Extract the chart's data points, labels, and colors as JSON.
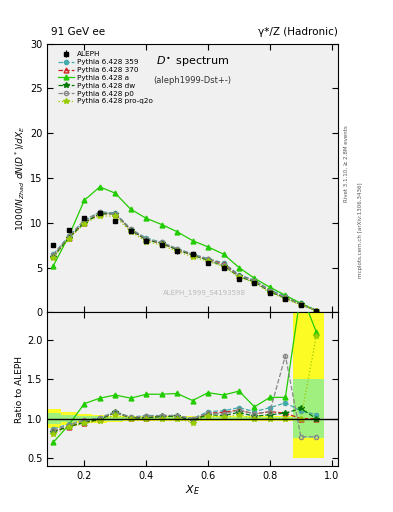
{
  "title_left": "91 GeV ee",
  "title_right": "γ*/Z (Hadronic)",
  "plot_title": "D* spectrum",
  "plot_subtitle": "(aleph1999-Dst+-)",
  "watermark": "ALEPH_1999_S4193598",
  "right_label1": "Rivet 3.1.10, ≥ 2.8M events",
  "right_label2": "mcplots.cern.ch [arXiv:1306.3436]",
  "ylim_main": [
    0,
    30
  ],
  "ylim_ratio": [
    0.4,
    2.35
  ],
  "xlim": [
    0.08,
    1.02
  ],
  "x_data": [
    0.1,
    0.15,
    0.2,
    0.25,
    0.3,
    0.35,
    0.4,
    0.45,
    0.5,
    0.55,
    0.6,
    0.65,
    0.7,
    0.75,
    0.8,
    0.85,
    0.9,
    0.95
  ],
  "aleph_y": [
    7.5,
    9.2,
    10.5,
    11.1,
    10.2,
    9.1,
    8.0,
    7.5,
    6.8,
    6.5,
    5.5,
    5.0,
    3.7,
    3.3,
    2.2,
    1.5,
    0.8,
    0.2
  ],
  "aleph_yerr": [
    0.25,
    0.25,
    0.25,
    0.25,
    0.25,
    0.25,
    0.25,
    0.25,
    0.25,
    0.25,
    0.25,
    0.25,
    0.25,
    0.25,
    0.25,
    0.25,
    0.2,
    0.1
  ],
  "p359_y": [
    6.5,
    8.5,
    10.2,
    11.2,
    11.1,
    9.3,
    8.3,
    7.8,
    7.1,
    6.5,
    6.0,
    5.5,
    4.2,
    3.6,
    2.5,
    1.8,
    1.0,
    0.2
  ],
  "p370_y": [
    6.3,
    8.3,
    10.0,
    11.0,
    11.0,
    9.2,
    8.1,
    7.7,
    7.0,
    6.4,
    5.9,
    5.4,
    4.1,
    3.5,
    2.4,
    1.6,
    0.9,
    0.2
  ],
  "pa_y": [
    5.2,
    8.5,
    12.5,
    14.0,
    13.3,
    11.5,
    10.5,
    9.8,
    9.0,
    8.0,
    7.3,
    6.5,
    5.0,
    3.8,
    2.8,
    1.9,
    1.0,
    0.2
  ],
  "pdw_y": [
    6.2,
    8.3,
    10.0,
    11.0,
    11.0,
    9.2,
    8.1,
    7.7,
    7.0,
    6.4,
    5.8,
    5.2,
    4.0,
    3.4,
    2.3,
    1.6,
    0.9,
    0.2
  ],
  "pp0_y": [
    6.4,
    8.5,
    10.3,
    11.2,
    11.0,
    9.3,
    8.2,
    7.8,
    7.1,
    6.5,
    5.9,
    5.3,
    4.1,
    3.5,
    2.4,
    1.7,
    0.9,
    0.2
  ],
  "pproq2o_y": [
    6.1,
    8.2,
    9.9,
    10.8,
    10.7,
    9.0,
    7.9,
    7.5,
    6.8,
    6.2,
    5.7,
    5.1,
    3.9,
    3.3,
    2.2,
    1.5,
    0.8,
    0.2
  ],
  "ratio_p359": [
    0.87,
    0.93,
    0.97,
    1.01,
    1.09,
    1.02,
    1.04,
    1.04,
    1.04,
    1.0,
    1.09,
    1.1,
    1.14,
    1.09,
    1.14,
    1.2,
    1.1,
    1.05
  ],
  "ratio_p370": [
    0.84,
    0.9,
    0.95,
    0.99,
    1.08,
    1.01,
    1.01,
    1.03,
    1.03,
    0.98,
    1.07,
    1.08,
    1.11,
    1.06,
    1.09,
    1.07,
    1.0,
    1.0
  ],
  "ratio_pa": [
    0.7,
    0.92,
    1.19,
    1.26,
    1.3,
    1.26,
    1.31,
    1.31,
    1.32,
    1.23,
    1.33,
    1.3,
    1.35,
    1.15,
    1.27,
    1.27,
    2.6,
    2.1
  ],
  "ratio_pdw": [
    0.83,
    0.9,
    0.95,
    0.99,
    1.08,
    1.01,
    1.01,
    1.03,
    1.03,
    0.98,
    1.05,
    1.04,
    1.08,
    1.03,
    1.05,
    1.07,
    1.13,
    1.0
  ],
  "ratio_pp0": [
    0.85,
    0.92,
    0.98,
    1.01,
    1.08,
    1.02,
    1.03,
    1.04,
    1.04,
    1.0,
    1.07,
    1.06,
    1.11,
    1.06,
    1.09,
    1.8,
    0.77,
    0.77
  ],
  "ratio_pproq2o": [
    0.81,
    0.89,
    0.94,
    0.97,
    1.05,
    0.99,
    0.99,
    1.0,
    1.0,
    0.95,
    1.04,
    1.02,
    1.05,
    1.0,
    1.0,
    1.0,
    1.0,
    2.05
  ],
  "band_x_edges": [
    0.075,
    0.125,
    0.175,
    0.225,
    0.275,
    0.325,
    0.375,
    0.425,
    0.475,
    0.525,
    0.575,
    0.625,
    0.675,
    0.725,
    0.775,
    0.825,
    0.875,
    0.925,
    0.975
  ],
  "err_yellow_lo": [
    0.88,
    0.92,
    0.94,
    0.95,
    0.96,
    0.965,
    0.965,
    0.965,
    0.965,
    0.965,
    0.965,
    0.965,
    0.965,
    0.965,
    0.965,
    0.965,
    0.5,
    0.5,
    0.5
  ],
  "err_yellow_hi": [
    1.12,
    1.08,
    1.06,
    1.05,
    1.04,
    1.035,
    1.035,
    1.035,
    1.035,
    1.035,
    1.035,
    1.035,
    1.035,
    1.035,
    1.035,
    1.035,
    2.5,
    2.5,
    2.5
  ],
  "err_green_lo": [
    0.93,
    0.955,
    0.965,
    0.97,
    0.975,
    0.98,
    0.98,
    0.98,
    0.98,
    0.98,
    0.98,
    0.98,
    0.98,
    0.98,
    0.98,
    0.98,
    0.75,
    0.75,
    0.75
  ],
  "err_green_hi": [
    1.07,
    1.045,
    1.035,
    1.03,
    1.025,
    1.02,
    1.02,
    1.02,
    1.02,
    1.02,
    1.02,
    1.02,
    1.02,
    1.02,
    1.02,
    1.02,
    1.5,
    1.5,
    1.5
  ],
  "color_p359": "#44AAAA",
  "color_p370": "#CC2222",
  "color_pa": "#22CC00",
  "color_pdw": "#007700",
  "color_pp0": "#888888",
  "color_pproq2o": "#99CC00"
}
